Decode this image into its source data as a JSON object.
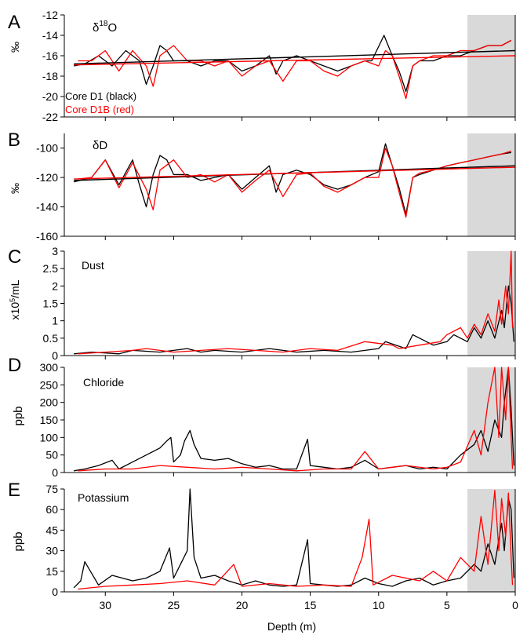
{
  "colors": {
    "black_series": "#000000",
    "red_series": "#ff0000",
    "shade": "#d9d9d9",
    "axis": "#000000"
  },
  "figure": {
    "xlabel": "Depth (m)",
    "x_ticks": [
      "30",
      "25",
      "20",
      "15",
      "10",
      "5",
      "0"
    ],
    "x_tick_values": [
      30,
      25,
      20,
      15,
      10,
      5,
      0
    ]
  },
  "chart_data": [
    {
      "type": "line",
      "panel": "A",
      "title": "δ18O",
      "ylabel": "‰",
      "xlim": [
        33,
        0
      ],
      "ylim": [
        -22,
        -12
      ],
      "shade_x": [
        3.5,
        0
      ],
      "y_ticks": [
        "-12",
        "-14",
        "-16",
        "-18",
        "-20",
        "-22"
      ],
      "y_tick_values": [
        -12,
        -14,
        -16,
        -18,
        -20,
        -22
      ],
      "legend": [
        "Core D1 (black)",
        "Core D1B (red)"
      ],
      "series": [
        {
          "name": "Core D1 (black)",
          "color": "#000000",
          "x": [
            32.3,
            31.5,
            30.5,
            29.5,
            28.5,
            27.5,
            27.0,
            26.5,
            26.0,
            25.5,
            25.0,
            24.0,
            23.0,
            22.0,
            21.0,
            20.0,
            19.0,
            18.0,
            17.5,
            17.0,
            16.0,
            15.0,
            14.0,
            13.0,
            12.0,
            11.0,
            10.5,
            9.6,
            9.0,
            8.5,
            8.0,
            7.5,
            7.0,
            6.0,
            5.0,
            4.0,
            3.0,
            2.0,
            1.0,
            0.3
          ],
          "y": [
            -17.0,
            -16.8,
            -16.0,
            -17.0,
            -15.5,
            -16.5,
            -18.8,
            -17.0,
            -15.0,
            -15.5,
            -16.5,
            -16.5,
            -17.0,
            -16.5,
            -16.5,
            -17.5,
            -17.0,
            -16.0,
            -17.8,
            -16.5,
            -16.0,
            -16.5,
            -17.0,
            -17.5,
            -17.0,
            -16.5,
            -16.5,
            -14.0,
            -16.0,
            -17.5,
            -19.5,
            -17.0,
            -16.5,
            -16.5,
            -16.0,
            -16.0,
            -15.5,
            -15.0,
            -15.0,
            -14.5
          ]
        },
        {
          "name": "Core D1B (red)",
          "color": "#ff0000",
          "x": [
            32.0,
            31.0,
            30.0,
            29.0,
            28.0,
            27.0,
            26.5,
            26.0,
            25.0,
            24.0,
            23.0,
            22.0,
            21.0,
            20.0,
            19.0,
            18.0,
            17.0,
            16.0,
            15.0,
            14.0,
            13.0,
            12.0,
            11.0,
            10.0,
            9.5,
            9.0,
            8.5,
            8.0,
            7.5,
            7.0,
            6.0,
            5.0,
            4.0,
            3.0,
            2.0,
            1.0,
            0.3
          ],
          "y": [
            -16.5,
            -16.5,
            -15.5,
            -17.5,
            -15.5,
            -17.0,
            -19.0,
            -16.0,
            -15.0,
            -16.5,
            -16.5,
            -17.0,
            -16.5,
            -18.0,
            -17.0,
            -16.5,
            -18.5,
            -16.5,
            -16.5,
            -17.5,
            -18.0,
            -17.0,
            -16.5,
            -17.0,
            -15.5,
            -16.0,
            -18.0,
            -20.2,
            -17.0,
            -16.5,
            -16.0,
            -16.0,
            -15.5,
            -15.5,
            -15.0,
            -15.0,
            -14.5
          ]
        }
      ],
      "trend_lines": [
        {
          "color": "#000000",
          "x": [
            32.3,
            0
          ],
          "y": [
            -16.8,
            -15.5
          ]
        },
        {
          "color": "#ff0000",
          "x": [
            32.3,
            0
          ],
          "y": [
            -16.9,
            -16.0
          ]
        }
      ]
    },
    {
      "type": "line",
      "panel": "B",
      "title": "δD",
      "ylabel": "‰",
      "xlim": [
        33,
        0
      ],
      "ylim": [
        -160,
        -90
      ],
      "shade_x": [
        3.5,
        0
      ],
      "y_ticks": [
        "-100",
        "-120",
        "-140",
        "-160"
      ],
      "y_tick_values": [
        -100,
        -120,
        -140,
        -160
      ],
      "series": [
        {
          "name": "Core D1",
          "color": "#000000",
          "x": [
            32.3,
            31.0,
            30.0,
            29.0,
            28.0,
            27.5,
            27.0,
            26.5,
            26.0,
            25.5,
            25.0,
            24.0,
            23.0,
            22.0,
            21.0,
            20.0,
            19.0,
            18.0,
            17.5,
            17.0,
            16.0,
            15.0,
            14.0,
            13.0,
            12.0,
            11.0,
            10.0,
            9.5,
            9.0,
            8.5,
            8.0,
            7.5,
            7.0,
            6.0,
            5.0,
            4.0,
            3.0,
            2.0,
            1.0,
            0.3
          ],
          "y": [
            -123,
            -120,
            -108,
            -125,
            -108,
            -125,
            -140,
            -118,
            -105,
            -108,
            -118,
            -118,
            -122,
            -120,
            -118,
            -128,
            -120,
            -112,
            -130,
            -118,
            -115,
            -118,
            -125,
            -128,
            -125,
            -120,
            -116,
            -97,
            -112,
            -127,
            -145,
            -120,
            -118,
            -115,
            -112,
            -110,
            -108,
            -106,
            -104,
            -103
          ]
        },
        {
          "name": "Core D1B",
          "color": "#ff0000",
          "x": [
            32.0,
            31.0,
            30.0,
            29.0,
            28.0,
            27.0,
            26.5,
            26.0,
            25.0,
            24.0,
            23.0,
            22.0,
            21.0,
            20.0,
            19.0,
            18.0,
            17.0,
            16.0,
            15.0,
            14.0,
            13.0,
            12.0,
            11.0,
            10.0,
            9.5,
            9.0,
            8.5,
            8.0,
            7.5,
            7.0,
            6.0,
            5.0,
            4.0,
            3.0,
            2.0,
            1.0,
            0.3
          ],
          "y": [
            -121,
            -120,
            -108,
            -127,
            -110,
            -128,
            -142,
            -115,
            -108,
            -120,
            -118,
            -123,
            -118,
            -130,
            -122,
            -115,
            -133,
            -118,
            -117,
            -126,
            -130,
            -125,
            -120,
            -120,
            -100,
            -112,
            -130,
            -147,
            -120,
            -117,
            -115,
            -112,
            -110,
            -108,
            -106,
            -104,
            -102
          ]
        }
      ],
      "trend_lines": [
        {
          "color": "#000000",
          "x": [
            32.3,
            0
          ],
          "y": [
            -122,
            -112
          ]
        },
        {
          "color": "#ff0000",
          "x": [
            32.3,
            0
          ],
          "y": [
            -121,
            -113
          ]
        }
      ]
    },
    {
      "type": "line",
      "panel": "C",
      "title": "Dust",
      "ylabel": "x10⁵/mL",
      "xlim": [
        33,
        0
      ],
      "ylim": [
        0,
        3
      ],
      "shade_x": [
        3.5,
        0
      ],
      "y_ticks": [
        "3",
        "2.5",
        "2",
        "1.5",
        "1",
        "0.5",
        "0"
      ],
      "y_tick_values": [
        3,
        2.5,
        2,
        1.5,
        1,
        0.5,
        0
      ],
      "series": [
        {
          "name": "Core D1",
          "color": "#000000",
          "x": [
            32.3,
            31.0,
            29.0,
            28.0,
            26.0,
            24.0,
            23.0,
            22.0,
            20.0,
            18.0,
            16.0,
            14.0,
            12.0,
            10.0,
            9.5,
            8.0,
            7.5,
            6.0,
            5.0,
            4.5,
            3.5,
            3.0,
            2.5,
            2.0,
            1.5,
            1.0,
            0.8,
            0.5,
            0.3,
            0.1
          ],
          "y": [
            0.05,
            0.1,
            0.05,
            0.15,
            0.1,
            0.2,
            0.1,
            0.15,
            0.1,
            0.2,
            0.1,
            0.15,
            0.1,
            0.2,
            0.4,
            0.2,
            0.6,
            0.3,
            0.4,
            0.6,
            0.4,
            0.8,
            0.5,
            1.0,
            0.5,
            1.3,
            0.8,
            2.0,
            1.5,
            0.4
          ]
        },
        {
          "name": "Core D1B",
          "color": "#ff0000",
          "x": [
            32.0,
            30.0,
            28.0,
            27.0,
            25.0,
            23.0,
            21.0,
            19.0,
            17.0,
            15.0,
            13.0,
            11.0,
            9.0,
            8.5,
            7.0,
            5.5,
            5.0,
            4.0,
            3.5,
            3.0,
            2.5,
            2.0,
            1.5,
            1.2,
            1.0,
            0.7,
            0.5,
            0.3,
            0.2
          ],
          "y": [
            0.05,
            0.1,
            0.15,
            0.2,
            0.1,
            0.15,
            0.2,
            0.15,
            0.1,
            0.2,
            0.15,
            0.4,
            0.3,
            0.2,
            0.3,
            0.4,
            0.6,
            0.8,
            0.5,
            0.9,
            0.6,
            1.2,
            0.7,
            1.6,
            0.9,
            2.0,
            1.2,
            3.0,
            0.8
          ]
        }
      ]
    },
    {
      "type": "line",
      "panel": "D",
      "title": "Chloride",
      "ylabel": "ppb",
      "xlim": [
        33,
        0
      ],
      "ylim": [
        0,
        300
      ],
      "shade_x": [
        3.5,
        0
      ],
      "y_ticks": [
        "300",
        "250",
        "200",
        "150",
        "100",
        "50",
        "0"
      ],
      "y_tick_values": [
        300,
        250,
        200,
        150,
        100,
        50,
        0
      ],
      "series": [
        {
          "name": "Core D1",
          "color": "#000000",
          "x": [
            32.3,
            31.5,
            30.5,
            29.5,
            29.0,
            28.0,
            27.0,
            26.5,
            26.0,
            25.5,
            25.2,
            25.0,
            24.5,
            24.2,
            23.8,
            23.5,
            23.0,
            22.0,
            21.0,
            20.0,
            19.0,
            18.0,
            17.0,
            16.0,
            15.2,
            15.0,
            14.0,
            13.0,
            12.0,
            11.0,
            10.0,
            9.0,
            8.0,
            7.0,
            6.0,
            5.0,
            4.0,
            3.0,
            2.5,
            2.0,
            1.5,
            1.0,
            0.8,
            0.5,
            0.3,
            0.1
          ],
          "y": [
            5,
            10,
            20,
            35,
            10,
            30,
            50,
            60,
            70,
            90,
            100,
            30,
            50,
            90,
            120,
            80,
            40,
            35,
            40,
            25,
            15,
            20,
            10,
            10,
            95,
            20,
            15,
            10,
            15,
            35,
            10,
            15,
            20,
            10,
            15,
            10,
            50,
            80,
            120,
            60,
            150,
            100,
            200,
            300,
            180,
            20
          ]
        },
        {
          "name": "Core D1B",
          "color": "#ff0000",
          "x": [
            32.0,
            30.0,
            28.0,
            26.0,
            24.0,
            22.0,
            20.0,
            18.0,
            16.0,
            14.0,
            12.0,
            11.0,
            10.0,
            8.0,
            6.0,
            5.0,
            4.0,
            3.0,
            2.5,
            2.0,
            1.5,
            1.2,
            1.0,
            0.7,
            0.5,
            0.3,
            0.2
          ],
          "y": [
            5,
            10,
            10,
            20,
            15,
            10,
            15,
            10,
            5,
            10,
            10,
            60,
            10,
            20,
            10,
            15,
            30,
            120,
            50,
            200,
            300,
            100,
            300,
            150,
            300,
            100,
            10
          ]
        }
      ]
    },
    {
      "type": "line",
      "panel": "E",
      "title": "Potassium",
      "ylabel": "ppb",
      "xlim": [
        33,
        0
      ],
      "ylim": [
        0,
        75
      ],
      "shade_x": [
        3.5,
        0
      ],
      "y_ticks": [
        "75",
        "60",
        "45",
        "30",
        "15",
        "0"
      ],
      "y_tick_values": [
        75,
        60,
        45,
        30,
        15,
        0
      ],
      "series": [
        {
          "name": "Core D1",
          "color": "#000000",
          "x": [
            32.3,
            31.8,
            31.5,
            30.5,
            29.5,
            28.0,
            27.0,
            26.0,
            25.3,
            25.0,
            24.5,
            24.0,
            23.8,
            23.5,
            23.0,
            22.0,
            21.0,
            20.0,
            19.0,
            18.0,
            17.0,
            16.0,
            15.2,
            15.0,
            14.0,
            13.0,
            12.0,
            11.0,
            10.0,
            9.0,
            8.0,
            7.0,
            6.0,
            5.0,
            4.0,
            3.0,
            2.5,
            2.0,
            1.5,
            1.0,
            0.8,
            0.5,
            0.3,
            0.1
          ],
          "y": [
            3,
            8,
            22,
            5,
            12,
            8,
            10,
            15,
            32,
            10,
            20,
            30,
            75,
            25,
            10,
            12,
            8,
            5,
            8,
            5,
            4,
            5,
            38,
            6,
            5,
            4,
            5,
            10,
            6,
            4,
            8,
            10,
            5,
            8,
            10,
            20,
            15,
            35,
            20,
            50,
            30,
            68,
            60,
            10
          ]
        },
        {
          "name": "Core D1B",
          "color": "#ff0000",
          "x": [
            32.0,
            30.0,
            28.0,
            26.0,
            24.0,
            22.0,
            20.6,
            20.0,
            18.0,
            16.0,
            14.0,
            12.0,
            11.2,
            10.7,
            10.4,
            9.0,
            8.0,
            7.0,
            6.0,
            5.0,
            4.0,
            3.0,
            2.5,
            2.0,
            1.5,
            1.2,
            1.0,
            0.7,
            0.5,
            0.3,
            0.2
          ],
          "y": [
            2,
            4,
            5,
            6,
            8,
            5,
            20,
            4,
            6,
            4,
            5,
            4,
            25,
            53,
            5,
            12,
            10,
            8,
            15,
            8,
            25,
            15,
            55,
            20,
            74,
            30,
            68,
            40,
            72,
            25,
            5
          ]
        }
      ]
    }
  ]
}
